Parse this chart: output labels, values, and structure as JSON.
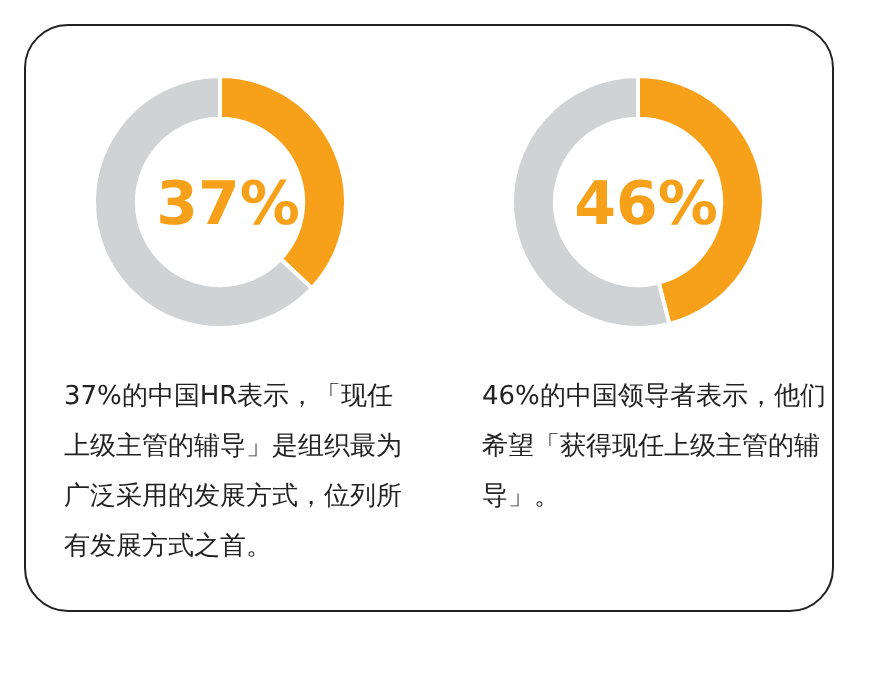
{
  "chart_data": [
    {
      "type": "donut",
      "categories": [
        null,
        null
      ],
      "values": [
        37,
        63
      ],
      "colors": [
        "#f7a11a",
        "#d1d2d4"
      ],
      "value_labels": [
        "37%",
        null
      ],
      "annotations": [
        "37%的中国HR表示，「现任上级主管的辅导」是组织最为广泛采用的发展方式，位列所有发展方式之首。"
      ]
    },
    {
      "type": "donut",
      "categories": [
        null,
        null
      ],
      "values": [
        46,
        54
      ],
      "colors": [
        "#f7a11a",
        "#d1d2d4"
      ],
      "value_labels": [
        "46%",
        null
      ],
      "annotations": [
        "46%的中国领导者表示，他们希望「获得现任上级主管的辅导」。"
      ]
    }
  ]
}
